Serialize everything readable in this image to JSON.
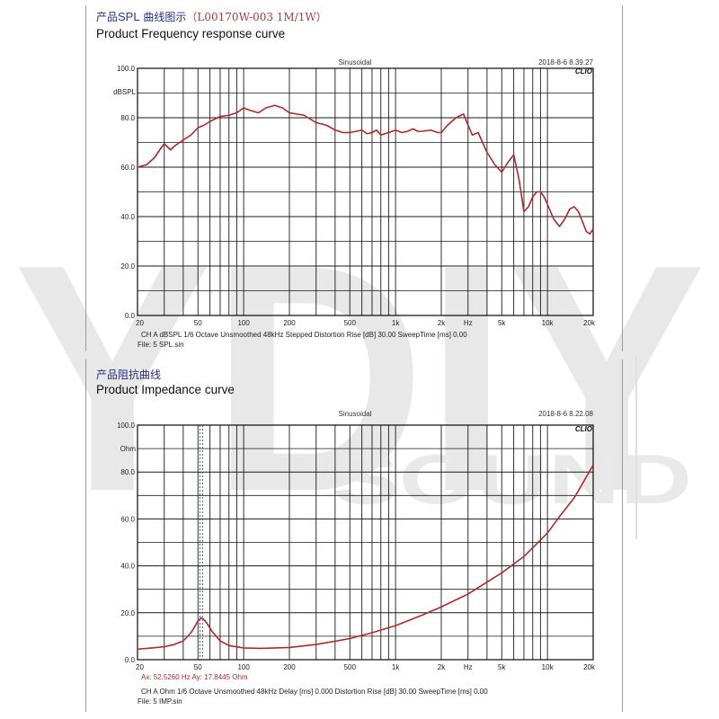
{
  "watermark": {
    "letters": "YDIY",
    "sub": "SOUND",
    "color": "#e6e6e6"
  },
  "spl": {
    "title_cn_prefix": "产品",
    "title_cn_accent": "SPL",
    "title_cn_mid": " 曲线图示",
    "title_cn_model": "（L00170W-003 1M/1W）",
    "title_en": "Product Frequency response curve",
    "mode_label": "Sinusoidal",
    "timestamp": "2018-8-6 8.39.27",
    "brand": "CLIO",
    "y_unit": "dBSPL",
    "y_tick_labels": [
      "100.0",
      "80.0",
      "60.0",
      "40.0",
      "20.0",
      "0.0"
    ],
    "x_tick_labels": [
      "20",
      "50",
      "100",
      "200",
      "500",
      "1k",
      "2k",
      "Hz",
      "5k",
      "10k",
      "20k"
    ],
    "settings_line": "CH A   dBSPL   1/6 Octave   Unsmoothed   48kHz   Stepped    Distortion Rise [dB] 30.00    SweepTime [ms] 0.00",
    "file_line": "File: 5 SPL.sin"
  },
  "imp": {
    "title_cn": "产品阻抗曲线",
    "title_en": "Product Impedance curve",
    "mode_label": "Sinusoidal",
    "timestamp": "2018-8-6 8.22.08",
    "brand": "CLIO",
    "y_unit": "Ohm",
    "y_tick_labels": [
      "100.0",
      "80.0",
      "60.0",
      "40.0",
      "20.0",
      "0.0"
    ],
    "x_tick_labels": [
      "20",
      "50",
      "100",
      "200",
      "500",
      "1k",
      "2k",
      "Hz",
      "5k",
      "10k",
      "20k"
    ],
    "cursor_readout": "Ax: 52.5260 Hz  Ay: 17.8445 Ohm",
    "settings_line": "CH A   Ohm    1/6 Octave   Unsmoothed    48kHz   Delay [ms] 0.000    Distortion Rise [dB] 30.00    SweepTime [ms] 0.00",
    "file_line": "File: 5 IMP.sin"
  },
  "colors": {
    "curve": "#b0282c",
    "grid": "#1a1a1a",
    "cursor": "#2a3f7a",
    "readout": "#b0282c"
  },
  "chart_data": [
    {
      "type": "line",
      "xscale": "log",
      "xlim": [
        20,
        20000
      ],
      "ylim": [
        0,
        100
      ],
      "grid": true,
      "series": [
        {
          "x": [
            20,
            23,
            26,
            28,
            30,
            33,
            35,
            40,
            45,
            50,
            55,
            60,
            70,
            80,
            90,
            100,
            110,
            125,
            140,
            160,
            180,
            200,
            250,
            300,
            350,
            400,
            450,
            500,
            550,
            600,
            650,
            700,
            750,
            800,
            900,
            1000,
            1100,
            1200,
            1300,
            1400,
            1500,
            1700,
            1900,
            2000,
            2200,
            2500,
            2800,
            3000,
            3200,
            3500,
            3800,
            4000,
            4500,
            5000,
            5500,
            6000,
            6500,
            7000,
            7500,
            8000,
            8500,
            9000,
            9500,
            10000,
            11000,
            12000,
            13000,
            14000,
            15000,
            16000,
            17000,
            18000,
            19000,
            20000
          ],
          "y": [
            60,
            61,
            64,
            67,
            69.5,
            67,
            68.5,
            71,
            73,
            76,
            77,
            78.5,
            80.5,
            81,
            82,
            84,
            83,
            82,
            84,
            85,
            84,
            82,
            81,
            78,
            77,
            75,
            74,
            74,
            74.5,
            75,
            73.5,
            74,
            75,
            73,
            74,
            75,
            74,
            74.5,
            75.5,
            74.5,
            74.5,
            75,
            74,
            74,
            77,
            80,
            81.5,
            77,
            73,
            74,
            69,
            66,
            61,
            58,
            62,
            65,
            55,
            42,
            44,
            48,
            50,
            50,
            48,
            45,
            39,
            36,
            39,
            43,
            44,
            42,
            38,
            34,
            33,
            35
          ]
        }
      ]
    },
    {
      "type": "line",
      "xscale": "log",
      "xlim": [
        20,
        20000
      ],
      "ylim": [
        0,
        100
      ],
      "grid": true,
      "cursor": {
        "x": 52.526,
        "y": 17.8445
      },
      "series": [
        {
          "x": [
            20,
            25,
            30,
            35,
            40,
            45,
            48,
            50,
            52.526,
            55,
            58,
            62,
            70,
            80,
            100,
            130,
            200,
            300,
            500,
            700,
            1000,
            1500,
            2000,
            3000,
            5000,
            7000,
            10000,
            12000,
            15000,
            17000,
            20000
          ],
          "y": [
            4.5,
            5,
            5.5,
            6.5,
            8,
            11.5,
            14.5,
            16.5,
            17.84,
            17,
            15,
            12,
            8,
            6,
            5,
            4.8,
            5.2,
            6.5,
            9,
            11.5,
            14.5,
            19,
            22.5,
            28,
            37,
            44,
            54,
            61,
            69,
            75,
            83
          ]
        }
      ]
    }
  ]
}
